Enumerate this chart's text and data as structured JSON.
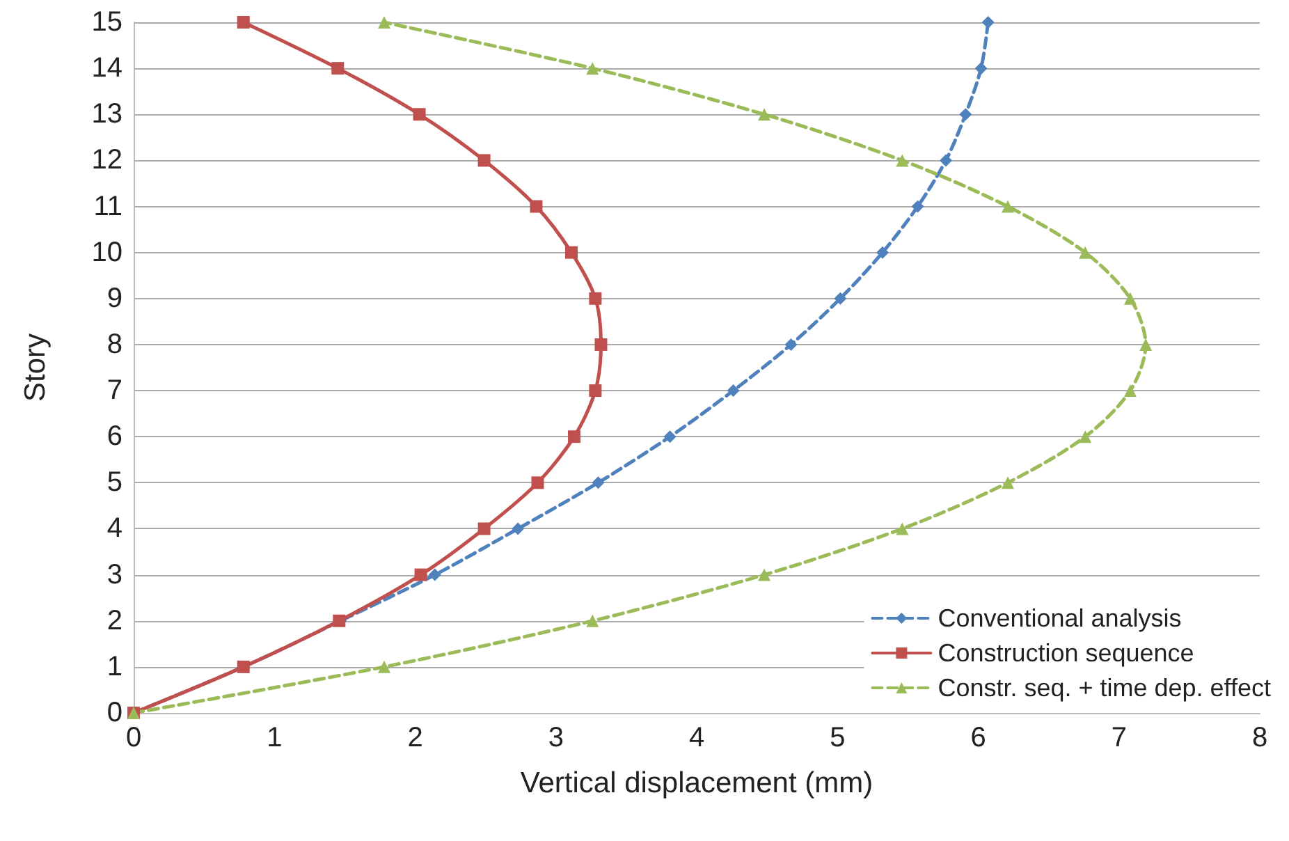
{
  "chart_data": {
    "type": "line",
    "xlabel": "Vertical displacement (mm)",
    "ylabel": "Story",
    "xlim": [
      0,
      8
    ],
    "xticks": [
      0,
      1,
      2,
      3,
      4,
      5,
      6,
      7,
      8
    ],
    "ylim": [
      0,
      15
    ],
    "yticks": [
      0,
      1,
      2,
      3,
      4,
      5,
      6,
      7,
      8,
      9,
      10,
      11,
      12,
      13,
      14,
      15
    ],
    "grid": "y",
    "legend": "bottom right",
    "series": [
      {
        "name": "Conventional analysis",
        "color": "#4f81bd",
        "marker": "diamond",
        "line_style": "dashed",
        "x": [
          0,
          0.78,
          1.47,
          2.14,
          2.73,
          3.3,
          3.81,
          4.26,
          4.67,
          5.02,
          5.32,
          5.57,
          5.77,
          5.91,
          6.02,
          6.07
        ],
        "values": [
          0,
          1,
          2,
          3,
          4,
          5,
          6,
          7,
          8,
          9,
          10,
          11,
          12,
          13,
          14,
          15
        ]
      },
      {
        "name": "Construction sequence",
        "color": "#c0504d",
        "marker": "square",
        "line_style": "solid",
        "x": [
          0,
          0.78,
          1.46,
          2.04,
          2.49,
          2.87,
          3.13,
          3.28,
          3.32,
          3.28,
          3.11,
          2.86,
          2.49,
          2.03,
          1.45,
          0.78
        ],
        "values": [
          0,
          1,
          2,
          3,
          4,
          5,
          6,
          7,
          8,
          9,
          10,
          11,
          12,
          13,
          14,
          15
        ]
      },
      {
        "name": "Constr. seq. + time dep. effect",
        "color": "#9bbb59",
        "marker": "triangle",
        "line_style": "dashed",
        "x": [
          0,
          1.78,
          3.26,
          4.48,
          5.46,
          6.21,
          6.76,
          7.08,
          7.19,
          7.08,
          6.76,
          6.21,
          5.46,
          4.48,
          3.26,
          1.78
        ],
        "values": [
          0,
          1,
          2,
          3,
          4,
          5,
          6,
          7,
          8,
          9,
          10,
          11,
          12,
          13,
          14,
          15
        ]
      }
    ]
  }
}
